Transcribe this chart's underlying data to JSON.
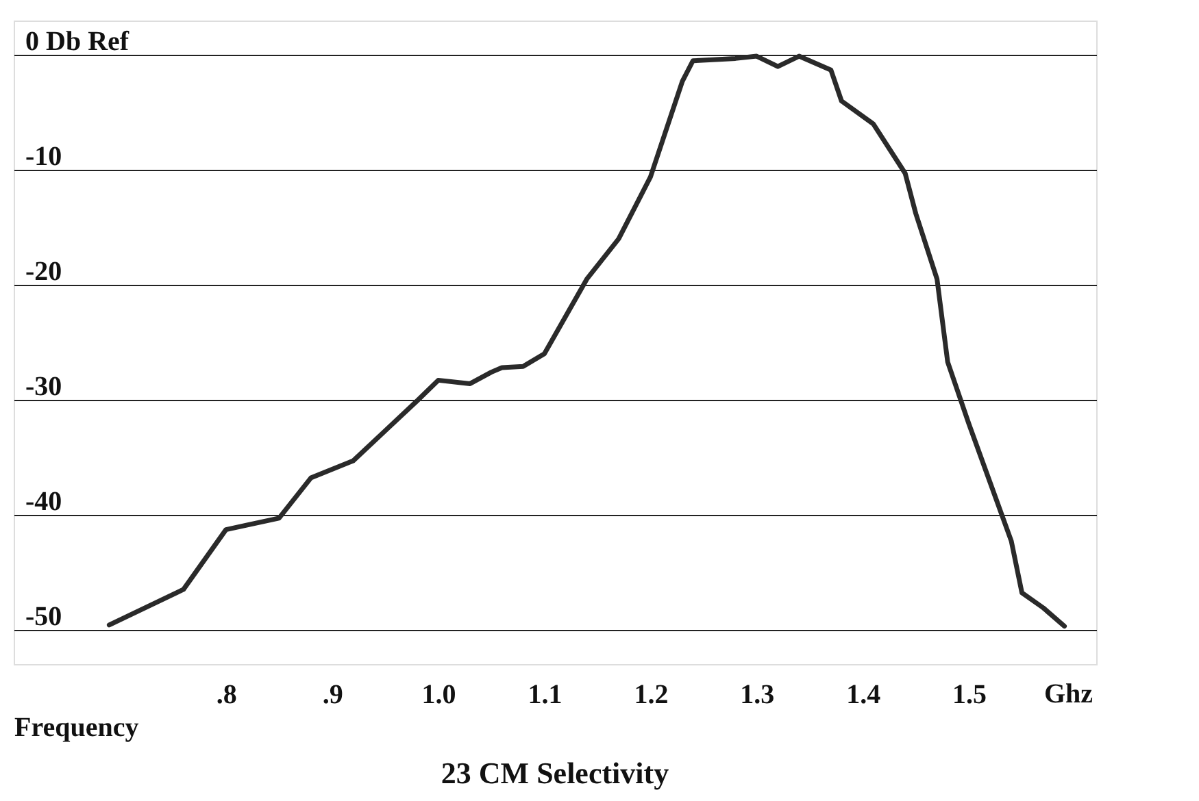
{
  "chart_data": {
    "type": "line",
    "title": "23 CM Selectivity",
    "xlabel": "Frequency",
    "annotations": [
      "Ghz"
    ],
    "x": [
      0.69,
      0.76,
      0.8,
      0.85,
      0.88,
      0.92,
      0.95,
      0.98,
      1.0,
      1.03,
      1.05,
      1.06,
      1.08,
      1.1,
      1.14,
      1.17,
      1.2,
      1.23,
      1.24,
      1.28,
      1.3,
      1.32,
      1.34,
      1.37,
      1.38,
      1.41,
      1.44,
      1.45,
      1.47,
      1.48,
      1.5,
      1.52,
      1.54,
      1.55,
      1.57,
      1.59
    ],
    "series": [
      {
        "color": "#2a2a2a",
        "values": [
          -49.6,
          -46.5,
          -41.3,
          -40.3,
          -36.8,
          -35.3,
          -32.7,
          -30.1,
          -28.3,
          -28.6,
          -27.6,
          -27.2,
          -27.1,
          -26.0,
          -19.5,
          -16.0,
          -10.6,
          -2.3,
          -0.5,
          -0.3,
          -0.1,
          -1.0,
          -0.1,
          -1.3,
          -4.0,
          -6.0,
          -10.3,
          -13.8,
          -19.5,
          -26.7,
          -32.1,
          -37.2,
          -42.3,
          -46.8,
          -48.1,
          -49.7
        ]
      }
    ],
    "xlim": [
      0.6,
      1.62
    ],
    "ylim": [
      -53,
      3
    ],
    "xticks": [
      {
        "value": 0.8,
        "label": ".8"
      },
      {
        "value": 0.9,
        "label": ".9"
      },
      {
        "value": 1.0,
        "label": "1.0"
      },
      1.1,
      1.2,
      1.3,
      1.4,
      1.5
    ],
    "yticks": [
      {
        "value": 0,
        "label": "0 Db Ref"
      },
      -10,
      -20,
      -30,
      -40,
      -50
    ],
    "grid": "y",
    "marker": "none",
    "line_style": "solid"
  }
}
